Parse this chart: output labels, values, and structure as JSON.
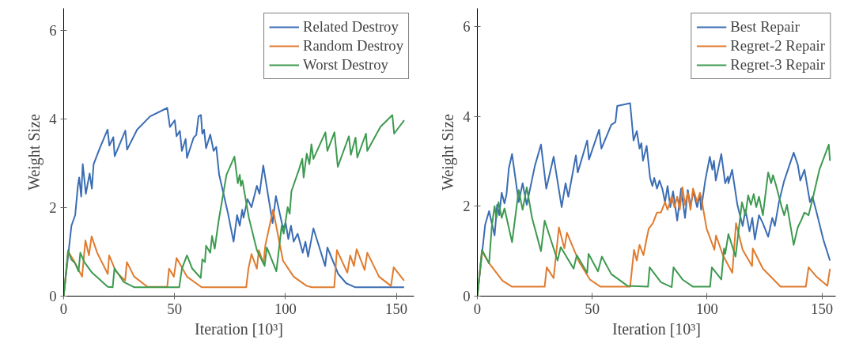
{
  "chart_data": [
    {
      "type": "line",
      "xlabel": "Iteration [10³]",
      "ylabel": "Weight Size",
      "xlim": [
        0,
        158
      ],
      "ylim": [
        0,
        6.5
      ],
      "xticks": [
        0,
        50,
        100,
        150
      ],
      "yticks": [
        0,
        2,
        4,
        6
      ],
      "grid": false,
      "legend": "top right",
      "marker": "none",
      "line_style": "solid",
      "series": [
        {
          "name": "Related Destroy",
          "color": "#3b6db4",
          "x": [
            0,
            3.5,
            5.2,
            6.4,
            7,
            7.9,
            8.6,
            10,
            11.7,
            12.7,
            13.5,
            16.5,
            19.8,
            20.6,
            22.4,
            23,
            27.8,
            28.6,
            33.1,
            39,
            46.7,
            47.9,
            50.1,
            50.9,
            52.4,
            53.3,
            55,
            55.6,
            58.6,
            59.8,
            60.8,
            61.9,
            62.5,
            63.3,
            64.2,
            66.1,
            67.6,
            68.8,
            70.1,
            74,
            76.6,
            78.2,
            79.4,
            80.5,
            81.1,
            82.9,
            84.7,
            87.1,
            88.3,
            90,
            94.2,
            95.7,
            98.9,
            100.1,
            101.3,
            102.5,
            103.7,
            105.5,
            107.8,
            109,
            110.2,
            112.6,
            117.9,
            118.9,
            123.8,
            127.4,
            131.5,
            153.5
          ],
          "values": [
            0,
            1.59,
            1.83,
            2.49,
            2.68,
            2.25,
            2.98,
            2.31,
            2.77,
            2.43,
            2.98,
            3.37,
            3.76,
            3.4,
            3.59,
            3.16,
            3.74,
            3.31,
            3.76,
            4.06,
            4.25,
            3.82,
            3.97,
            3.61,
            3.73,
            3.28,
            3.55,
            3.12,
            3.58,
            3.64,
            4.06,
            4.09,
            3.67,
            3.76,
            3.34,
            3.65,
            3.28,
            3.37,
            2.74,
            1.89,
            1.23,
            1.83,
            1.59,
            1.95,
            1.77,
            2.19,
            2.01,
            2.49,
            2.31,
            2.95,
            1.65,
            2.26,
            1.53,
            1.65,
            1.29,
            1.59,
            1.23,
            1.41,
            0.98,
            1.23,
            0.89,
            1.53,
            0.68,
            1.1,
            0.5,
            0.29,
            0.2,
            0.2
          ]
        },
        {
          "name": "Random Destroy",
          "color": "#e07b2e",
          "x": [
            0,
            2,
            4.6,
            8.3,
            9.8,
            11.4,
            12.6,
            15.1,
            19.9,
            20.5,
            23.5,
            27.7,
            28.5,
            31.8,
            37.8,
            46.7,
            47.5,
            49.7,
            50.9,
            55.6,
            62.2,
            82.3,
            83.3,
            84.7,
            87.1,
            88,
            90.1,
            90.9,
            94.4,
            98.9,
            103.7,
            109.6,
            111.9,
            122,
            123.2,
            127.9,
            129.2,
            130.9,
            132.1,
            135.7,
            136.9,
            142.2,
            147.6,
            148.8,
            153.5
          ],
          "values": [
            0,
            1.01,
            0.8,
            0.44,
            1.26,
            0.92,
            1.35,
            0.98,
            0.5,
            0.92,
            0.56,
            0.35,
            0.77,
            0.44,
            0.21,
            0.21,
            0.62,
            0.44,
            0.86,
            0.44,
            0.2,
            0.2,
            0.62,
            0.95,
            0.62,
            1.04,
            0.74,
            1.14,
            1.95,
            0.8,
            0.44,
            0.23,
            0.2,
            0.2,
            1.04,
            0.53,
            0.92,
            0.68,
            1.06,
            0.59,
            0.98,
            0.44,
            0.23,
            0.65,
            0.35
          ]
        },
        {
          "name": "Worst Destroy",
          "color": "#3d9a4f",
          "x": [
            0,
            2,
            3.4,
            5.2,
            6.7,
            7.5,
            9.3,
            12.8,
            19.9,
            22.1,
            22.9,
            27.1,
            31.9,
            52.1,
            53.3,
            55.6,
            58,
            61.8,
            62.5,
            63.7,
            64.2,
            66.1,
            66.9,
            68.1,
            69.9,
            73.4,
            77,
            78.5,
            79.4,
            79.9,
            80.6,
            83.5,
            87.1,
            90.6,
            91.6,
            95.9,
            98.3,
            99.2,
            101,
            101.9,
            102.7,
            106.1,
            107.6,
            108.2,
            109.6,
            110.8,
            111.7,
            112.6,
            118,
            118.9,
            122.1,
            123.6,
            128.6,
            129.5,
            131.6,
            132.4,
            136.3,
            136.9,
            142.8,
            148.2,
            149,
            153.5
          ],
          "values": [
            0,
            1.03,
            0.83,
            0.74,
            0.56,
            0.98,
            0.77,
            0.53,
            0.21,
            0.2,
            0.63,
            0.32,
            0.2,
            0.2,
            0.62,
            0.92,
            0.62,
            0.41,
            0.83,
            0.77,
            1.14,
            0.98,
            1.36,
            1.07,
            1.71,
            2.74,
            3.15,
            2.55,
            2.74,
            2.49,
            2.61,
            1.77,
            1.04,
            0.68,
            1.1,
            0.56,
            1.59,
            1.41,
            2.01,
            1.86,
            2.37,
            2.86,
            3.1,
            2.68,
            3.22,
            2.98,
            3.43,
            3.1,
            3.7,
            3.28,
            3.7,
            2.92,
            3.61,
            3.19,
            3.58,
            3.13,
            3.67,
            3.28,
            3.82,
            4.09,
            3.67,
            3.97
          ]
        }
      ]
    },
    {
      "type": "line",
      "xlabel": "Iteration [10³]",
      "ylabel": "Weight Size",
      "xlim": [
        0,
        156
      ],
      "ylim": [
        0,
        6.4
      ],
      "xticks": [
        0,
        50,
        100,
        150
      ],
      "yticks": [
        0,
        2,
        4,
        6
      ],
      "grid": false,
      "legend": "top right",
      "marker": "none",
      "line_style": "solid",
      "series": [
        {
          "name": "Best Repair",
          "color": "#3b6db4",
          "x": [
            0,
            2.2,
            3.4,
            5.1,
            7.5,
            8.6,
            9.5,
            10.6,
            11.8,
            12.7,
            13.7,
            15.1,
            18,
            19.7,
            21.5,
            25,
            27.7,
            30,
            33.2,
            36.7,
            38.4,
            39.6,
            42.9,
            43.7,
            47.8,
            48.6,
            53,
            54,
            58.3,
            60.1,
            60.9,
            66.5,
            68,
            69.4,
            70.6,
            71.4,
            72.1,
            73.7,
            75.2,
            76.2,
            77,
            78.2,
            79.3,
            80.5,
            81.7,
            82.8,
            84,
            85.2,
            87,
            88.7,
            90.4,
            91.6,
            92.8,
            93.9,
            95.7,
            96.9,
            97.4,
            99.2,
            101.2,
            102.3,
            103,
            103.8,
            106.2,
            107.9,
            109.1,
            109.3,
            110.9,
            113.2,
            115.5,
            116.7,
            118.5,
            119.7,
            120.8,
            122.6,
            124.3,
            126.6,
            128.4,
            129.5,
            131.3,
            133.6,
            137.7,
            139.5,
            140.6,
            142.4,
            144.8,
            145.9,
            147.7,
            150.6,
            153.5
          ],
          "values": [
            0,
            1.03,
            1.59,
            1.89,
            1.35,
            2.03,
            1.8,
            2.3,
            2.06,
            2.27,
            2.84,
            3.16,
            2.09,
            2.51,
            2.03,
            2.89,
            3.37,
            2.39,
            3.1,
            1.98,
            2.51,
            2.21,
            3.13,
            2.75,
            3.46,
            3.04,
            3.7,
            3.28,
            3.81,
            3.87,
            4.23,
            4.29,
            3.46,
            3.67,
            3.28,
            3.4,
            3.01,
            3.34,
            2.63,
            2.45,
            2.63,
            2.39,
            2.57,
            2.39,
            2.09,
            2.45,
            1.98,
            2.33,
            1.68,
            2.39,
            1.74,
            2.36,
            1.98,
            2.33,
            1.98,
            2.27,
            1.92,
            2.57,
            3.1,
            2.81,
            3.01,
            2.57,
            3.16,
            2.51,
            2.66,
            2.51,
            2.81,
            2.03,
            1.56,
            1.92,
            1.44,
            1.74,
            1.26,
            1.8,
            1.62,
            1.32,
            1.74,
            1.56,
            2.09,
            2.57,
            3.19,
            2.92,
            2.57,
            2.81,
            2.09,
            2.21,
            1.86,
            1.26,
            0.79
          ]
        },
        {
          "name": "Regret-2 Repair",
          "color": "#e07b2e",
          "x": [
            0,
            2,
            5.1,
            11,
            15.1,
            29.3,
            30.2,
            33.2,
            35.5,
            37.9,
            39,
            44.3,
            49,
            53.6,
            66.5,
            68.2,
            69.4,
            70.6,
            72.3,
            73.5,
            74.6,
            76.4,
            78.2,
            79.9,
            81.7,
            82.8,
            84.6,
            85.8,
            87,
            88.1,
            89.3,
            90.4,
            91.6,
            92.8,
            93.9,
            95.7,
            96.9,
            97.4,
            99.8,
            103.2,
            103.9,
            106.9,
            111,
            112.6,
            115.5,
            119.6,
            119.9,
            124.3,
            132,
            143,
            144.2,
            147.7,
            152.4,
            153.5
          ],
          "values": [
            0,
            1,
            0.73,
            0.34,
            0.21,
            0.21,
            0.64,
            0.4,
            1.53,
            1.06,
            1.41,
            0.76,
            0.37,
            0.21,
            0.21,
            1.03,
            0.79,
            1.14,
            0.91,
            1.23,
            1.5,
            1.62,
            1.86,
            1.86,
            2.09,
            1.92,
            2.21,
            1.98,
            2.21,
            1.92,
            2.42,
            2.03,
            2.3,
            1.92,
            2.39,
            2.09,
            2.3,
            2.21,
            1.5,
            1.03,
            1.35,
            0.91,
            0.52,
            1.62,
            1.03,
            0.67,
            1.06,
            0.61,
            0.21,
            0.21,
            0.64,
            0.43,
            0.23,
            0.61
          ]
        },
        {
          "name": "Regret-3 Repair",
          "color": "#3d9a4f",
          "x": [
            0,
            2,
            5.1,
            6.3,
            7.5,
            8.3,
            9.2,
            10.6,
            11.8,
            15.1,
            18,
            19.7,
            21.5,
            23.8,
            27.7,
            29.3,
            34.9,
            36.3,
            41.9,
            43.3,
            47.8,
            48.4,
            52.5,
            54.2,
            58.3,
            65.3,
            74.3,
            75,
            79.9,
            84.6,
            85.4,
            89.3,
            93.9,
            101.3,
            102.1,
            106.2,
            107.4,
            107.9,
            109.3,
            112.4,
            115.2,
            116.7,
            117.9,
            119.1,
            120.3,
            121.4,
            122.6,
            124.3,
            126.6,
            127.9,
            128.7,
            130.1,
            132.5,
            133.6,
            134.8,
            137.7,
            139.5,
            141.2,
            142.4,
            144.2,
            145.9,
            148.9,
            153,
            153.5
          ],
          "values": [
            0,
            1.03,
            0.73,
            1.56,
            2.0,
            1.74,
            2.09,
            1.74,
            1.95,
            1.2,
            2.36,
            1.92,
            2.42,
            1.74,
            1.0,
            1.68,
            0.79,
            1.09,
            0.61,
            0.91,
            0.52,
            0.94,
            0.55,
            0.88,
            0.49,
            0.23,
            0.21,
            0.64,
            0.31,
            0.2,
            0.64,
            0.37,
            0.21,
            0.21,
            0.64,
            0.37,
            1.06,
            0.94,
            1.38,
            0.88,
            2.09,
            1.8,
            2.24,
            2.03,
            2.27,
            1.98,
            2.21,
            1.8,
            2.75,
            2.51,
            2.69,
            2.45,
            1.98,
            1.8,
            2.03,
            1.14,
            1.53,
            1.71,
            1.86,
            1.8,
            2.15,
            2.81,
            3.37,
            3.01
          ]
        }
      ]
    }
  ]
}
